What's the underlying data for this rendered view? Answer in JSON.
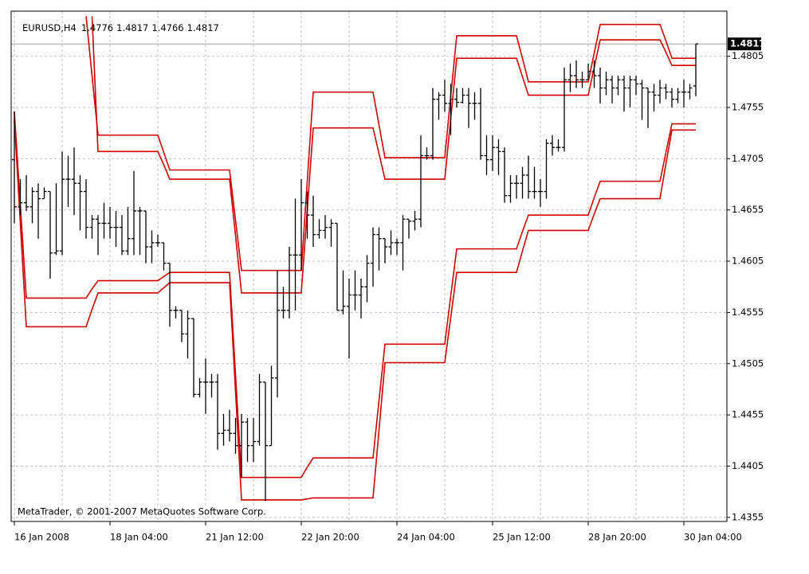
{
  "chart_data": {
    "type": "ohlc",
    "symbol": "EURUSD,H4",
    "copyright": "MetaTrader, © 2001-2007 MetaQuotes Software Corp.",
    "color": "#000000",
    "grid": true,
    "ylim": [
      1.4351,
      1.4849
    ],
    "yticks": [
      1.4355,
      1.4405,
      1.4455,
      1.4505,
      1.4555,
      1.4605,
      1.4655,
      1.4705,
      1.4755,
      1.4805
    ],
    "categories": [
      "16 Jan 2008",
      null,
      null,
      null,
      null,
      null,
      null,
      null,
      null,
      null,
      null,
      null,
      null,
      null,
      null,
      null,
      "18 Jan 04:00",
      null,
      null,
      null,
      null,
      null,
      null,
      null,
      null,
      null,
      null,
      null,
      null,
      null,
      null,
      null,
      "21 Jan 12:00",
      null,
      null,
      null,
      null,
      null,
      null,
      null,
      null,
      null,
      null,
      null,
      null,
      null,
      null,
      null,
      "22 Jan 20:00",
      null,
      null,
      null,
      null,
      null,
      null,
      null,
      null,
      null,
      null,
      null,
      null,
      null,
      null,
      null,
      "24 Jan 04:00",
      null,
      null,
      null,
      null,
      null,
      null,
      null,
      null,
      null,
      null,
      null,
      null,
      null,
      null,
      null,
      "25 Jan 12:00",
      null,
      null,
      null,
      null,
      null,
      null,
      null,
      null,
      null,
      null,
      null,
      null,
      null,
      null,
      null,
      "28 Jan 20:00",
      null,
      null,
      null,
      null,
      null,
      null,
      null,
      null,
      null,
      null,
      null,
      null,
      null,
      null,
      null,
      "30 Jan 04:00",
      null,
      null
    ],
    "open": [
      1.4704,
      1.4658,
      1.4662,
      1.4658,
      1.4673,
      1.4666,
      1.4673,
      1.4613,
      1.4615,
      1.4685,
      1.4685,
      1.4681,
      1.4673,
      1.4638,
      1.4646,
      1.4642,
      1.4642,
      1.4638,
      1.4638,
      1.4615,
      1.4627,
      1.4654,
      1.4654,
      1.4619,
      1.4623,
      1.4623,
      1.4603,
      1.4557,
      1.4557,
      1.4534,
      1.4549,
      1.4475,
      1.4487,
      1.4487,
      1.4487,
      1.4437,
      1.444,
      1.4437,
      1.4425,
      1.4448,
      1.4425,
      1.4429,
      1.4487,
      1.4425,
      1.4491,
      1.4557,
      1.4557,
      1.4611,
      1.4611,
      1.4662,
      1.465,
      1.4631,
      1.4635,
      1.4638,
      1.4642,
      1.4557,
      1.4561,
      1.4572,
      1.4572,
      1.458,
      1.4603,
      1.4631,
      1.4627,
      1.4619,
      1.4623,
      1.4623,
      1.4646,
      1.4644,
      1.4646,
      1.4708,
      1.4708,
      1.4763,
      1.4767,
      1.4759,
      1.4763,
      1.476,
      1.4767,
      1.4759,
      1.4759,
      1.4708,
      1.4704,
      1.4716,
      1.4712,
      1.4669,
      1.4681,
      1.4681,
      1.4689,
      1.4673,
      1.4673,
      1.4673,
      1.472,
      1.4716,
      1.4716,
      1.4782,
      1.4786,
      1.4782,
      1.4782,
      1.479,
      1.4786,
      1.4774,
      1.4782,
      1.4774,
      1.4782,
      1.4774,
      1.4782,
      1.4778,
      1.4774,
      1.477,
      1.4767,
      1.4774,
      1.477,
      1.4763,
      1.477,
      1.477,
      1.4776
    ],
    "high": [
      1.4751,
      1.4685,
      1.4689,
      1.4677,
      1.4681,
      1.4677,
      1.4673,
      1.4681,
      1.4712,
      1.4708,
      1.4716,
      1.4689,
      1.4685,
      1.465,
      1.465,
      1.4662,
      1.4658,
      1.4654,
      1.465,
      1.4658,
      1.4693,
      1.4658,
      1.4654,
      1.4635,
      1.4631,
      1.4623,
      1.4603,
      1.4561,
      1.4557,
      1.4557,
      1.4549,
      1.4491,
      1.451,
      1.4495,
      1.4495,
      1.4456,
      1.446,
      1.4452,
      1.4456,
      1.4452,
      1.4452,
      1.4495,
      1.4487,
      1.4503,
      1.4596,
      1.458,
      1.4619,
      1.4666,
      1.4685,
      1.4673,
      1.4669,
      1.4646,
      1.465,
      1.4646,
      1.4642,
      1.4596,
      1.4588,
      1.4596,
      1.4588,
      1.4611,
      1.4638,
      1.4638,
      1.4627,
      1.4635,
      1.4627,
      1.465,
      1.4646,
      1.4654,
      1.4728,
      1.4716,
      1.4774,
      1.477,
      1.4782,
      1.4778,
      1.4774,
      1.4774,
      1.4774,
      1.477,
      1.4774,
      1.4728,
      1.4728,
      1.4724,
      1.4716,
      1.4689,
      1.4689,
      1.4697,
      1.4708,
      1.4697,
      1.4685,
      1.4724,
      1.4728,
      1.4724,
      1.4794,
      1.4798,
      1.4801,
      1.479,
      1.4798,
      1.4801,
      1.4794,
      1.479,
      1.4786,
      1.4786,
      1.4786,
      1.4786,
      1.4786,
      1.4782,
      1.4774,
      1.4778,
      1.4782,
      1.4778,
      1.4774,
      1.4774,
      1.4782,
      1.4778,
      1.4817
    ],
    "low": [
      1.4642,
      1.465,
      1.4654,
      1.4642,
      1.4627,
      1.4666,
      1.4588,
      1.4611,
      1.4611,
      1.4658,
      1.465,
      1.4635,
      1.4627,
      1.4627,
      1.4611,
      1.4627,
      1.4627,
      1.4619,
      1.4611,
      1.4611,
      1.4611,
      1.4611,
      1.4603,
      1.4603,
      1.4619,
      1.4596,
      1.4541,
      1.4549,
      1.4526,
      1.451,
      1.4472,
      1.4472,
      1.4456,
      1.4472,
      1.4421,
      1.4425,
      1.4429,
      1.4417,
      1.4394,
      1.4409,
      1.4409,
      1.4425,
      1.4371,
      1.4425,
      1.4472,
      1.4549,
      1.4549,
      1.4557,
      1.4596,
      1.4627,
      1.4619,
      1.4627,
      1.4627,
      1.4619,
      1.4557,
      1.4553,
      1.451,
      1.4557,
      1.4549,
      1.4565,
      1.458,
      1.4596,
      1.4603,
      1.4611,
      1.4611,
      1.4596,
      1.4627,
      1.4635,
      1.4638,
      1.4704,
      1.4704,
      1.4743,
      1.4751,
      1.4728,
      1.4755,
      1.4759,
      1.4735,
      1.4743,
      1.4704,
      1.4689,
      1.4693,
      1.4689,
      1.4662,
      1.4662,
      1.4666,
      1.4666,
      1.4666,
      1.4666,
      1.4658,
      1.4666,
      1.4708,
      1.4712,
      1.4712,
      1.477,
      1.4774,
      1.4774,
      1.4782,
      1.4774,
      1.4759,
      1.4767,
      1.4759,
      1.4767,
      1.4751,
      1.4755,
      1.4767,
      1.4743,
      1.4735,
      1.4751,
      1.4759,
      1.4763,
      1.4755,
      1.4759,
      1.4755,
      1.4763,
      1.4766
    ],
    "close": [
      1.4658,
      1.4662,
      1.4658,
      1.4673,
      1.4666,
      1.4673,
      1.4613,
      1.4615,
      1.4685,
      1.4685,
      1.4681,
      1.4673,
      1.4638,
      1.4646,
      1.4642,
      1.4642,
      1.4638,
      1.4638,
      1.4615,
      1.4627,
      1.4654,
      1.4654,
      1.4619,
      1.4623,
      1.4623,
      1.4603,
      1.4557,
      1.4557,
      1.4534,
      1.4549,
      1.4475,
      1.4487,
      1.4487,
      1.4487,
      1.4437,
      1.444,
      1.4437,
      1.4425,
      1.4448,
      1.4425,
      1.4429,
      1.4487,
      1.4425,
      1.4491,
      1.4557,
      1.4557,
      1.4611,
      1.4611,
      1.4662,
      1.465,
      1.4631,
      1.4635,
      1.4638,
      1.4642,
      1.4557,
      1.4561,
      1.4572,
      1.4572,
      1.458,
      1.4603,
      1.4631,
      1.4627,
      1.4619,
      1.4623,
      1.4623,
      1.4646,
      1.4644,
      1.4646,
      1.4708,
      1.4708,
      1.4763,
      1.4767,
      1.4759,
      1.4763,
      1.476,
      1.4767,
      1.4759,
      1.4759,
      1.4708,
      1.4704,
      1.4716,
      1.4712,
      1.4669,
      1.4681,
      1.4681,
      1.4689,
      1.4673,
      1.4673,
      1.4673,
      1.472,
      1.4716,
      1.4716,
      1.4782,
      1.4786,
      1.4782,
      1.4782,
      1.479,
      1.4786,
      1.4774,
      1.4782,
      1.4774,
      1.4782,
      1.4774,
      1.4782,
      1.4778,
      1.4774,
      1.477,
      1.4767,
      1.4774,
      1.477,
      1.4763,
      1.477,
      1.477,
      1.4774,
      1.4817
    ],
    "series": [
      {
        "color": "#d00000",
        "values": [
          null,
          null,
          null,
          null,
          null,
          null,
          null,
          null,
          null,
          null,
          null,
          null,
          1.4844,
          1.4786,
          1.4728,
          1.4728,
          1.4728,
          1.4728,
          1.4728,
          1.4728,
          1.4728,
          1.4728,
          1.4728,
          1.4728,
          1.4728,
          1.4711,
          1.4694,
          1.4694,
          1.4694,
          1.4694,
          1.4694,
          1.4694,
          1.4694,
          1.4694,
          1.4694,
          1.4694,
          1.4694,
          1.4645,
          1.4596,
          1.4596,
          1.4596,
          1.4596,
          1.4596,
          1.4596,
          1.4596,
          1.4596,
          1.4596,
          1.4596,
          1.4596,
          1.4683,
          1.477,
          1.477,
          1.477,
          1.477,
          1.477,
          1.477,
          1.477,
          1.477,
          1.477,
          1.477,
          1.477,
          1.4738,
          1.4706,
          1.4706,
          1.4706,
          1.4706,
          1.4706,
          1.4706,
          1.4706,
          1.4706,
          1.4706,
          1.4706,
          1.4706,
          1.4766,
          1.4825,
          1.4825,
          1.4825,
          1.4825,
          1.4825,
          1.4825,
          1.4825,
          1.4825,
          1.4825,
          1.4825,
          1.4825,
          1.4803,
          1.478,
          1.478,
          1.478,
          1.478,
          1.478,
          1.478,
          1.478,
          1.478,
          1.478,
          1.478,
          1.478,
          1.4808,
          1.4836,
          1.4836,
          1.4836,
          1.4836,
          1.4836,
          1.4836,
          1.4836,
          1.4836,
          1.4836,
          1.4836,
          1.4836,
          1.482,
          1.4803,
          1.4803,
          1.4803,
          1.4803,
          1.4803
        ]
      },
      {
        "color": "#d00000",
        "values": [
          null,
          null,
          null,
          null,
          null,
          null,
          null,
          null,
          null,
          null,
          null,
          null,
          null,
          1.4844,
          1.4712,
          1.4712,
          1.4712,
          1.4712,
          1.4712,
          1.4712,
          1.4712,
          1.4712,
          1.4712,
          1.4712,
          1.4712,
          1.4699,
          1.4685,
          1.4685,
          1.4685,
          1.4685,
          1.4685,
          1.4685,
          1.4685,
          1.4685,
          1.4685,
          1.4685,
          1.4685,
          1.463,
          1.4574,
          1.4574,
          1.4574,
          1.4574,
          1.4574,
          1.4574,
          1.4574,
          1.4574,
          1.4574,
          1.4574,
          1.4574,
          1.4655,
          1.4735,
          1.4735,
          1.4735,
          1.4735,
          1.4735,
          1.4735,
          1.4735,
          1.4735,
          1.4735,
          1.4735,
          1.4735,
          1.471,
          1.4685,
          1.4685,
          1.4685,
          1.4685,
          1.4685,
          1.4685,
          1.4685,
          1.4685,
          1.4685,
          1.4685,
          1.4685,
          1.4744,
          1.4803,
          1.4803,
          1.4803,
          1.4803,
          1.4803,
          1.4803,
          1.4803,
          1.4803,
          1.4803,
          1.4803,
          1.4803,
          1.4785,
          1.4767,
          1.4767,
          1.4767,
          1.4767,
          1.4767,
          1.4767,
          1.4767,
          1.4767,
          1.4767,
          1.4767,
          1.4767,
          1.4794,
          1.4821,
          1.4821,
          1.4821,
          1.4821,
          1.4821,
          1.4821,
          1.4821,
          1.4821,
          1.4821,
          1.4821,
          1.4821,
          1.4809,
          1.4796,
          1.4796,
          1.4796,
          1.4796,
          1.4796
        ]
      },
      {
        "color": "#d00000",
        "values": [
          1.4751,
          1.466,
          1.4569,
          1.4569,
          1.4569,
          1.4569,
          1.4569,
          1.4569,
          1.4569,
          1.4569,
          1.4569,
          1.4569,
          1.4569,
          1.4578,
          1.4586,
          1.4586,
          1.4586,
          1.4586,
          1.4586,
          1.4586,
          1.4586,
          1.4586,
          1.4586,
          1.4586,
          1.4586,
          1.459,
          1.4594,
          1.4594,
          1.4594,
          1.4594,
          1.4594,
          1.4594,
          1.4594,
          1.4594,
          1.4594,
          1.4594,
          1.4594,
          1.4494,
          1.4394,
          1.4394,
          1.4394,
          1.4394,
          1.4394,
          1.4394,
          1.4394,
          1.4394,
          1.4394,
          1.4394,
          1.4394,
          1.4404,
          1.4413,
          1.4413,
          1.4413,
          1.4413,
          1.4413,
          1.4413,
          1.4413,
          1.4413,
          1.4413,
          1.4413,
          1.4413,
          1.4469,
          1.4524,
          1.4524,
          1.4524,
          1.4524,
          1.4524,
          1.4524,
          1.4524,
          1.4524,
          1.4524,
          1.4524,
          1.4524,
          1.4571,
          1.4617,
          1.4617,
          1.4617,
          1.4617,
          1.4617,
          1.4617,
          1.4617,
          1.4617,
          1.4617,
          1.4617,
          1.4617,
          1.4634,
          1.465,
          1.465,
          1.465,
          1.465,
          1.465,
          1.465,
          1.465,
          1.465,
          1.465,
          1.465,
          1.465,
          1.4667,
          1.4683,
          1.4683,
          1.4683,
          1.4683,
          1.4683,
          1.4683,
          1.4683,
          1.4683,
          1.4683,
          1.4683,
          1.4683,
          1.4711,
          1.4739,
          1.4739,
          1.4739,
          1.4739,
          1.4739
        ]
      },
      {
        "color": "#d00000",
        "values": [
          1.4743,
          1.4642,
          1.4541,
          1.4541,
          1.4541,
          1.4541,
          1.4541,
          1.4541,
          1.4541,
          1.4541,
          1.4541,
          1.4541,
          1.4541,
          1.4558,
          1.4574,
          1.4574,
          1.4574,
          1.4574,
          1.4574,
          1.4574,
          1.4574,
          1.4574,
          1.4574,
          1.4574,
          1.4574,
          1.4579,
          1.4584,
          1.4584,
          1.4584,
          1.4584,
          1.4584,
          1.4584,
          1.4584,
          1.4584,
          1.4584,
          1.4584,
          1.4584,
          1.4478,
          1.4372,
          1.4372,
          1.4372,
          1.4372,
          1.4372,
          1.4372,
          1.4372,
          1.4372,
          1.4372,
          1.4372,
          1.4372,
          1.4373,
          1.4374,
          1.4374,
          1.4374,
          1.4374,
          1.4374,
          1.4374,
          1.4374,
          1.4374,
          1.4374,
          1.4374,
          1.4374,
          1.444,
          1.4506,
          1.4506,
          1.4506,
          1.4506,
          1.4506,
          1.4506,
          1.4506,
          1.4506,
          1.4506,
          1.4506,
          1.4506,
          1.455,
          1.4594,
          1.4594,
          1.4594,
          1.4594,
          1.4594,
          1.4594,
          1.4594,
          1.4594,
          1.4594,
          1.4594,
          1.4594,
          1.4615,
          1.4635,
          1.4635,
          1.4635,
          1.4635,
          1.4635,
          1.4635,
          1.4635,
          1.4635,
          1.4635,
          1.4635,
          1.4635,
          1.4651,
          1.4666,
          1.4666,
          1.4666,
          1.4666,
          1.4666,
          1.4666,
          1.4666,
          1.4666,
          1.4666,
          1.4666,
          1.4666,
          1.47,
          1.4733,
          1.4733,
          1.4733,
          1.4733,
          1.4733
        ]
      }
    ]
  }
}
